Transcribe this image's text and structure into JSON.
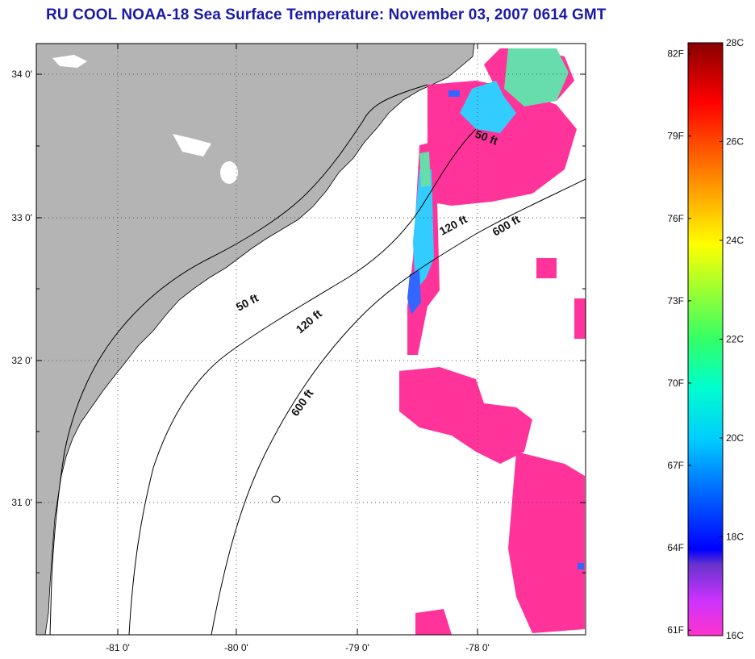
{
  "title": "RU COOL  NOAA-18  Sea Surface Temperature:  November 03, 2007 0614 GMT",
  "map": {
    "longitude_ticks": [
      "-81 0'",
      "-80 0'",
      "-79 0'",
      "-78 0'"
    ],
    "latitude_ticks": [
      "34 0'",
      "33 0'",
      "32 0'",
      "31 0'"
    ],
    "grid": true,
    "colors": {
      "land": "#b4b4b4",
      "ocean_no_data": "#ffffff",
      "sst_warm": "#ff3399",
      "sst_mid": "#33ccff",
      "sst_cool": "#3366ff",
      "contour": "#000000"
    },
    "isobath_labels": {
      "a": "50 ft",
      "b": "50 ft",
      "c": "120 ft",
      "d": "120 ft",
      "e": "600 ft",
      "f": "600 ft"
    }
  },
  "colorbar": {
    "celsius_labels": [
      "28C",
      "26C",
      "24C",
      "22C",
      "20C",
      "18C",
      "16C"
    ],
    "fahrenheit_labels": [
      "82F",
      "79F",
      "76F",
      "73F",
      "70F",
      "67F",
      "64F",
      "61F"
    ],
    "range_c": [
      16,
      28
    ]
  }
}
